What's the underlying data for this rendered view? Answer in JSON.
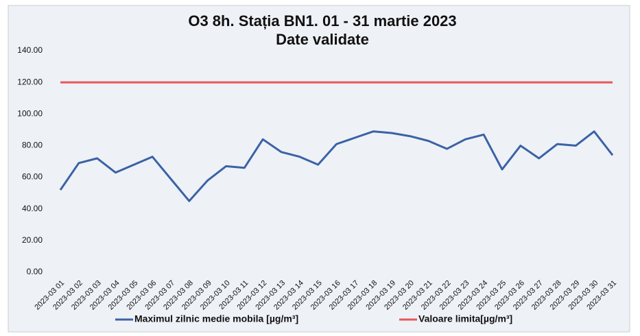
{
  "chart_data": {
    "type": "line",
    "title": "O3 8h. Stația BN1. 01 - 31 martie 2023",
    "subtitle": "Date validate",
    "categories": [
      "2023-03 01",
      "2023-03 02",
      "2023-03 03",
      "2023-03 04",
      "2023-03 05",
      "2023-03 06",
      "2023-03 07",
      "2023-03 08",
      "2023-03 09",
      "2023-03 10",
      "2023-03 11",
      "2023-03 12",
      "2023-03 13",
      "2023-03 14",
      "2023-03 15",
      "2023-03 16",
      "2023-03 17",
      "2023-03 18",
      "2023-03 19",
      "2023-03 20",
      "2023-03 21",
      "2023-03 22",
      "2023-03 23",
      "2023-03 24",
      "2023-03 25",
      "2023-03 26",
      "2023-03 27",
      "2023-03 28",
      "2023-03 29",
      "2023-03 30",
      "2023-03 31"
    ],
    "series": [
      {
        "name": "Maximul zilnic medie mobila [µg/m³]",
        "color": "#3a62a6",
        "values": [
          52,
          69,
          72,
          63,
          68,
          73,
          59,
          45,
          58,
          67,
          66,
          84,
          76,
          73,
          68,
          81,
          85,
          89,
          88,
          86,
          83,
          78,
          84,
          87,
          65,
          80,
          72,
          81,
          80,
          89,
          74
        ]
      },
      {
        "name": "Valoare limita[µg/m³]",
        "color": "#e5575c",
        "values": [
          120,
          120,
          120,
          120,
          120,
          120,
          120,
          120,
          120,
          120,
          120,
          120,
          120,
          120,
          120,
          120,
          120,
          120,
          120,
          120,
          120,
          120,
          120,
          120,
          120,
          120,
          120,
          120,
          120,
          120,
          120
        ]
      }
    ],
    "ylim": [
      0,
      140
    ],
    "yticks": [
      {
        "value": 0,
        "label": "0.00"
      },
      {
        "value": 20,
        "label": "20.00"
      },
      {
        "value": 40,
        "label": "40.00"
      },
      {
        "value": 60,
        "label": "60.00"
      },
      {
        "value": 80,
        "label": "80.00"
      },
      {
        "value": 100,
        "label": "100.00"
      },
      {
        "value": 120,
        "label": "120.00"
      },
      {
        "value": 140,
        "label": "140.00"
      }
    ],
    "grid": false,
    "legend": "bottom"
  }
}
